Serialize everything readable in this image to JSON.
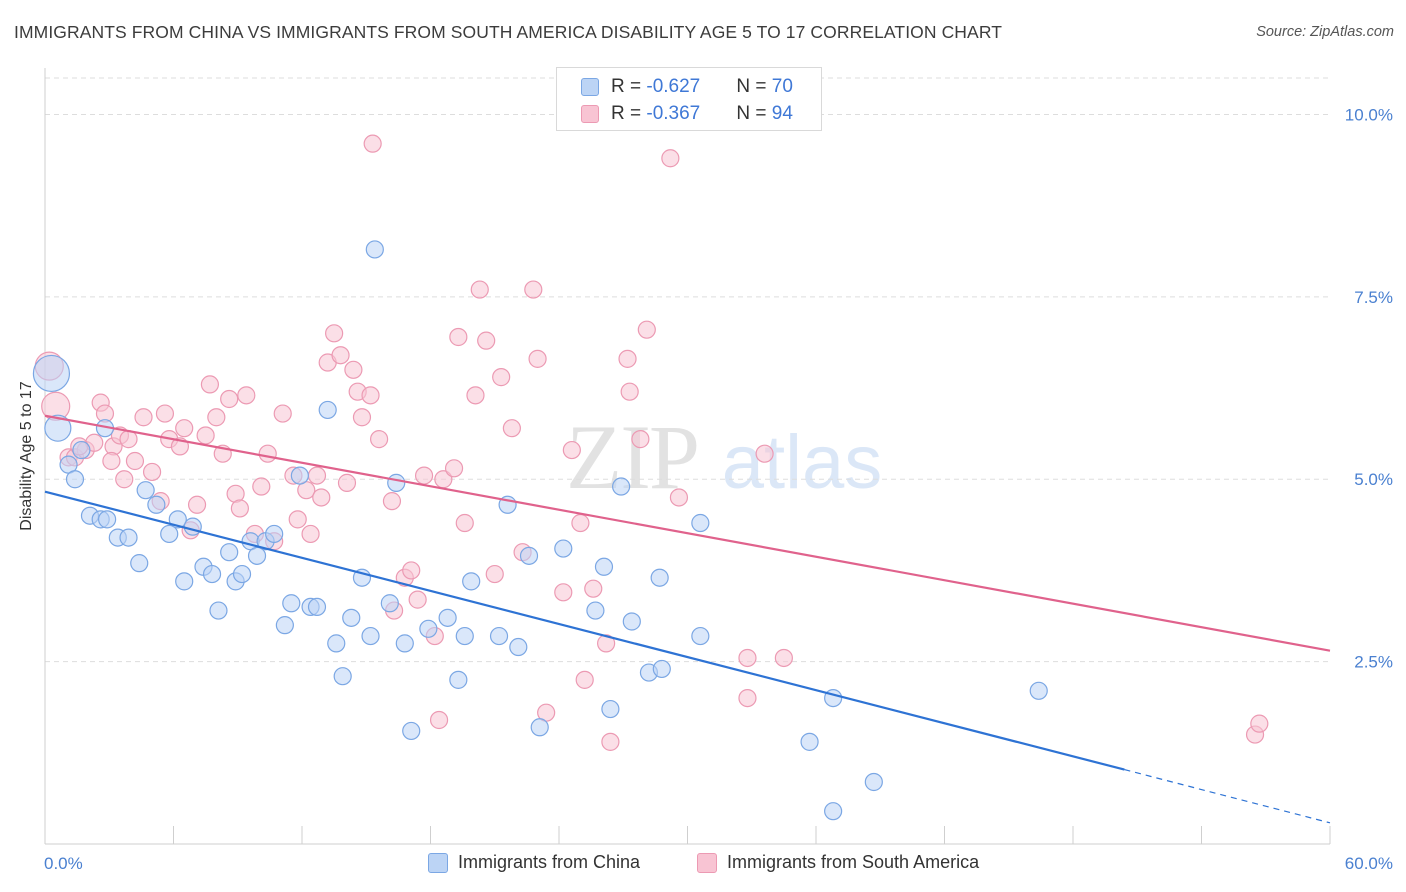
{
  "title": "IMMIGRANTS FROM CHINA VS IMMIGRANTS FROM SOUTH AMERICA DISABILITY AGE 5 TO 17 CORRELATION CHART",
  "source": "Source: ZipAtlas.com",
  "watermark": {
    "zip": "ZIP",
    "atlas": "atlas"
  },
  "legend": {
    "rows": [
      {
        "r_label": "R = ",
        "r_value": "-0.627",
        "n_label": "N = ",
        "n_value": "70"
      },
      {
        "r_label": "R = ",
        "r_value": "-0.367",
        "n_label": "N = ",
        "n_value": "94"
      }
    ]
  },
  "colors": {
    "china_fill": "#bcd4f5",
    "china_stroke": "#7ba7e4",
    "china_line": "#2e73d4",
    "sa_fill": "#f8c4d3",
    "sa_stroke": "#ec9ab3",
    "sa_line": "#e0628c",
    "tick_label": "#4a80d0",
    "grid": "#dddddd"
  },
  "chart_data": {
    "type": "scatter",
    "title": "IMMIGRANTS FROM CHINA VS IMMIGRANTS FROM SOUTH AMERICA DISABILITY AGE 5 TO 17 CORRELATION CHART",
    "xlabel": "",
    "ylabel": "Disability Age 5 to 17",
    "xlim": [
      0,
      60
    ],
    "ylim": [
      0,
      10.5
    ],
    "x_tick_labels": [
      "0.0%",
      "60.0%"
    ],
    "y_ticks": [
      2.5,
      5.0,
      7.5,
      10.0
    ],
    "y_tick_labels": [
      "2.5%",
      "5.0%",
      "7.5%",
      "10.0%"
    ],
    "grid": "horizontal dashed",
    "legend_position": "bottom",
    "series": [
      {
        "name": "Immigrants from China",
        "r": -0.627,
        "n": 70,
        "trend": {
          "x": [
            0,
            50.4
          ],
          "y": [
            4.83,
            1.02
          ]
        },
        "trend_dashed": {
          "x": [
            50.4,
            60
          ],
          "y": [
            1.02,
            0.29
          ]
        },
        "points": [
          [
            0.3,
            6.45
          ],
          [
            0.6,
            5.7
          ],
          [
            1.1,
            5.2
          ],
          [
            1.4,
            5.0
          ],
          [
            1.7,
            5.4
          ],
          [
            2.1,
            4.5
          ],
          [
            2.6,
            4.45
          ],
          [
            2.9,
            4.45
          ],
          [
            3.4,
            4.2
          ],
          [
            3.9,
            4.2
          ],
          [
            4.4,
            3.85
          ],
          [
            4.7,
            4.85
          ],
          [
            5.2,
            4.65
          ],
          [
            5.8,
            4.25
          ],
          [
            6.2,
            4.45
          ],
          [
            6.5,
            3.6
          ],
          [
            6.9,
            4.35
          ],
          [
            7.4,
            3.8
          ],
          [
            7.8,
            3.7
          ],
          [
            8.1,
            3.2
          ],
          [
            8.6,
            4.0
          ],
          [
            8.9,
            3.6
          ],
          [
            9.2,
            3.7
          ],
          [
            9.6,
            4.15
          ],
          [
            9.9,
            3.95
          ],
          [
            10.3,
            4.15
          ],
          [
            10.7,
            4.25
          ],
          [
            11.2,
            3.0
          ],
          [
            11.5,
            3.3
          ],
          [
            11.9,
            5.05
          ],
          [
            12.4,
            3.25
          ],
          [
            12.7,
            3.25
          ],
          [
            13.2,
            5.95
          ],
          [
            13.6,
            2.75
          ],
          [
            13.9,
            2.3
          ],
          [
            14.3,
            3.1
          ],
          [
            14.8,
            3.65
          ],
          [
            15.2,
            2.85
          ],
          [
            15.4,
            8.15
          ],
          [
            16.1,
            3.3
          ],
          [
            16.4,
            4.95
          ],
          [
            16.8,
            2.75
          ],
          [
            17.1,
            1.55
          ],
          [
            17.9,
            2.95
          ],
          [
            18.8,
            3.1
          ],
          [
            19.3,
            2.25
          ],
          [
            19.6,
            2.85
          ],
          [
            19.9,
            3.6
          ],
          [
            21.2,
            2.85
          ],
          [
            21.6,
            4.65
          ],
          [
            22.1,
            2.7
          ],
          [
            22.6,
            3.95
          ],
          [
            23.1,
            1.6
          ],
          [
            24.2,
            4.05
          ],
          [
            25.7,
            3.2
          ],
          [
            26.1,
            3.8
          ],
          [
            26.4,
            1.85
          ],
          [
            26.9,
            4.9
          ],
          [
            27.4,
            3.05
          ],
          [
            28.2,
            2.35
          ],
          [
            28.7,
            3.65
          ],
          [
            28.8,
            2.4
          ],
          [
            30.6,
            2.85
          ],
          [
            30.6,
            4.4
          ],
          [
            35.7,
            1.4
          ],
          [
            36.8,
            2.0
          ],
          [
            36.8,
            0.45
          ],
          [
            38.7,
            0.85
          ],
          [
            46.4,
            2.1
          ],
          [
            2.8,
            5.7
          ]
        ]
      },
      {
        "name": "Immigrants from South America",
        "r": -0.367,
        "n": 94,
        "trend": {
          "x": [
            0,
            60
          ],
          "y": [
            5.87,
            2.65
          ]
        },
        "points": [
          [
            0.2,
            6.55
          ],
          [
            0.5,
            6.0
          ],
          [
            1.1,
            5.3
          ],
          [
            1.4,
            5.3
          ],
          [
            1.9,
            5.4
          ],
          [
            2.3,
            5.5
          ],
          [
            2.6,
            6.05
          ],
          [
            2.8,
            5.9
          ],
          [
            3.2,
            5.45
          ],
          [
            3.5,
            5.6
          ],
          [
            3.7,
            5.0
          ],
          [
            3.9,
            5.55
          ],
          [
            4.2,
            5.25
          ],
          [
            4.6,
            5.85
          ],
          [
            5.0,
            5.1
          ],
          [
            5.4,
            4.7
          ],
          [
            5.6,
            5.9
          ],
          [
            5.8,
            5.55
          ],
          [
            6.3,
            5.45
          ],
          [
            6.5,
            5.7
          ],
          [
            6.8,
            4.3
          ],
          [
            7.1,
            4.65
          ],
          [
            7.5,
            5.6
          ],
          [
            7.7,
            6.3
          ],
          [
            8.0,
            5.85
          ],
          [
            8.3,
            5.35
          ],
          [
            8.6,
            6.1
          ],
          [
            8.9,
            4.8
          ],
          [
            9.1,
            4.6
          ],
          [
            9.4,
            6.15
          ],
          [
            9.8,
            4.25
          ],
          [
            10.1,
            4.9
          ],
          [
            10.4,
            5.35
          ],
          [
            10.7,
            4.15
          ],
          [
            11.1,
            5.9
          ],
          [
            11.6,
            5.05
          ],
          [
            11.8,
            4.45
          ],
          [
            12.2,
            4.85
          ],
          [
            12.4,
            4.25
          ],
          [
            12.7,
            5.05
          ],
          [
            12.9,
            4.75
          ],
          [
            13.2,
            6.6
          ],
          [
            13.5,
            7.0
          ],
          [
            13.8,
            6.7
          ],
          [
            14.1,
            4.95
          ],
          [
            14.4,
            6.5
          ],
          [
            14.6,
            6.2
          ],
          [
            14.8,
            5.85
          ],
          [
            15.2,
            6.15
          ],
          [
            15.3,
            9.6
          ],
          [
            15.6,
            5.55
          ],
          [
            16.2,
            4.7
          ],
          [
            16.3,
            3.2
          ],
          [
            16.8,
            3.65
          ],
          [
            17.1,
            3.75
          ],
          [
            17.4,
            3.35
          ],
          [
            17.7,
            5.05
          ],
          [
            18.2,
            2.85
          ],
          [
            18.4,
            1.7
          ],
          [
            18.6,
            5.0
          ],
          [
            19.1,
            5.15
          ],
          [
            19.3,
            6.95
          ],
          [
            19.6,
            4.4
          ],
          [
            20.1,
            6.15
          ],
          [
            20.3,
            7.6
          ],
          [
            20.6,
            6.9
          ],
          [
            21.0,
            3.7
          ],
          [
            21.3,
            6.4
          ],
          [
            21.8,
            5.7
          ],
          [
            22.3,
            4.0
          ],
          [
            22.8,
            7.6
          ],
          [
            23.0,
            6.65
          ],
          [
            23.4,
            1.8
          ],
          [
            24.2,
            3.45
          ],
          [
            24.6,
            5.4
          ],
          [
            25.0,
            4.4
          ],
          [
            25.2,
            2.25
          ],
          [
            25.6,
            3.5
          ],
          [
            26.2,
            2.75
          ],
          [
            26.4,
            1.4
          ],
          [
            27.2,
            6.65
          ],
          [
            27.3,
            6.2
          ],
          [
            27.8,
            5.55
          ],
          [
            28.1,
            7.05
          ],
          [
            29.2,
            9.4
          ],
          [
            29.6,
            4.75
          ],
          [
            32.8,
            2.55
          ],
          [
            32.8,
            2.0
          ],
          [
            33.6,
            5.35
          ],
          [
            34.5,
            2.55
          ],
          [
            56.5,
            1.5
          ],
          [
            56.7,
            1.65
          ],
          [
            3.1,
            5.25
          ],
          [
            1.6,
            5.45
          ]
        ]
      }
    ]
  },
  "bottom_legend": [
    "Immigrants from China",
    "Immigrants from South America"
  ],
  "y_axis_title": "Disability Age 5 to 17"
}
